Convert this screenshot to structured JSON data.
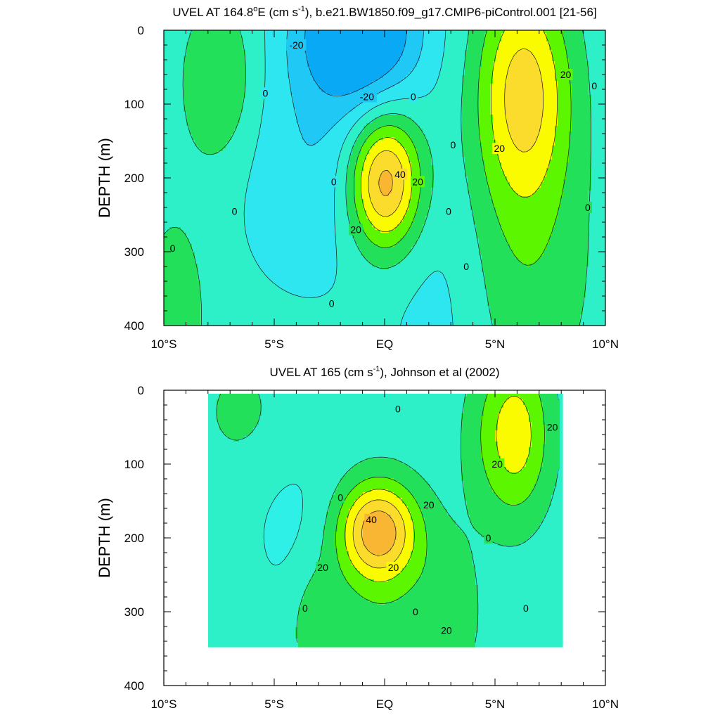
{
  "chart_data": [
    {
      "type": "heatmap",
      "title_parts": [
        "UVEL AT 164.8",
        "o",
        "E (cm s",
        "-1",
        "), b.e21.BW1850.f09_g17.CMIP6-piControl.001 [21-56]"
      ],
      "ylabel": "DEPTH (m)",
      "xlabel": "",
      "x_ticks": [
        "10°S",
        "5°S",
        "EQ",
        "5°N",
        "10°N"
      ],
      "x_tick_values": [
        -10,
        -5,
        0,
        5,
        10
      ],
      "y_ticks": [
        "0",
        "100",
        "200",
        "300",
        "400"
      ],
      "y_tick_values": [
        0,
        100,
        200,
        300,
        400
      ],
      "xlim": [
        -10,
        10
      ],
      "ylim": [
        0,
        400
      ],
      "y_inverted": true,
      "data_extent": {
        "x": [
          -10,
          10
        ],
        "y": [
          0,
          400
        ]
      },
      "color_levels": [
        {
          "min": -40,
          "max": -30,
          "color": "#0aa9f5"
        },
        {
          "min": -30,
          "max": -20,
          "color": "#1fc8f5"
        },
        {
          "min": -20,
          "max": -10,
          "color": "#2ee6f0"
        },
        {
          "min": -10,
          "max": 0,
          "color": "#2ef0c8"
        },
        {
          "min": 0,
          "max": 10,
          "color": "#22e05a"
        },
        {
          "min": 10,
          "max": 20,
          "color": "#5cf700"
        },
        {
          "min": 20,
          "max": 30,
          "color": "#fbfb00"
        },
        {
          "min": 30,
          "max": 40,
          "color": "#fbdc2c"
        },
        {
          "min": 40,
          "max": 50,
          "color": "#f9b632"
        },
        {
          "min": 50,
          "max": 60,
          "color": "#f58c2e"
        }
      ],
      "features": [
        {
          "x": -7.5,
          "y": 70,
          "sx": 1.2,
          "sy": 80,
          "amp": 18
        },
        {
          "x": -1.2,
          "y": 0,
          "sx": 1.9,
          "sy": 70,
          "amp": -44
        },
        {
          "x": -3.2,
          "y": 180,
          "sx": 2.4,
          "sy": 110,
          "amp": -12
        },
        {
          "x": 0,
          "y": 205,
          "sx": 1.15,
          "sy": 65,
          "amp": 55
        },
        {
          "x": 6.3,
          "y": 80,
          "sx": 1.5,
          "sy": 110,
          "amp": 40
        },
        {
          "x": 6.3,
          "y": 330,
          "sx": 2.3,
          "sy": 150,
          "amp": 14
        },
        {
          "x": -9.5,
          "y": 380,
          "sx": 1.2,
          "sy": 110,
          "amp": 12
        },
        {
          "x": 2.8,
          "y": 380,
          "sx": 1.7,
          "sy": 140,
          "amp": -8
        }
      ],
      "baseline": -7,
      "contour_labels": [
        {
          "text": "-20",
          "x": -4.0,
          "y": 20
        },
        {
          "text": "-20",
          "x": -0.8,
          "y": 90
        },
        {
          "text": "0",
          "x": -5.4,
          "y": 85
        },
        {
          "text": "0",
          "x": 1.3,
          "y": 90
        },
        {
          "text": "0",
          "x": 9.5,
          "y": 75
        },
        {
          "text": "0",
          "x": -2.3,
          "y": 205
        },
        {
          "text": "0",
          "x": 3.1,
          "y": 155
        },
        {
          "text": "0",
          "x": -6.8,
          "y": 245
        },
        {
          "text": "0",
          "x": 2.9,
          "y": 245
        },
        {
          "text": "0",
          "x": 9.2,
          "y": 240
        },
        {
          "text": "0",
          "x": -9.6,
          "y": 295
        },
        {
          "text": "0",
          "x": 3.7,
          "y": 320
        },
        {
          "text": "0",
          "x": -2.4,
          "y": 370
        },
        {
          "text": "20",
          "x": 8.2,
          "y": 60
        },
        {
          "text": "20",
          "x": 5.2,
          "y": 160
        },
        {
          "text": "20",
          "x": 1.5,
          "y": 205
        },
        {
          "text": "20",
          "x": -1.3,
          "y": 270
        },
        {
          "text": "40",
          "x": 0.7,
          "y": 195
        }
      ]
    },
    {
      "type": "heatmap",
      "title_parts": [
        "UVEL AT 165 (cm s",
        "-1",
        "), Johnson et al (2002)"
      ],
      "ylabel": "DEPTH (m)",
      "xlabel": "",
      "x_ticks": [
        "10°S",
        "5°S",
        "EQ",
        "5°N",
        "10°N"
      ],
      "x_tick_values": [
        -10,
        -5,
        0,
        5,
        10
      ],
      "y_ticks": [
        "0",
        "100",
        "200",
        "300",
        "400"
      ],
      "y_tick_values": [
        0,
        100,
        200,
        300,
        400
      ],
      "xlim": [
        -10,
        10
      ],
      "ylim": [
        0,
        400
      ],
      "y_inverted": true,
      "data_extent": {
        "x": [
          -8,
          8
        ],
        "y": [
          5,
          345
        ]
      },
      "color_levels": [
        {
          "min": -20,
          "max": -10,
          "color": "#2ef0e6"
        },
        {
          "min": -10,
          "max": 0,
          "color": "#2ef0c8"
        },
        {
          "min": 0,
          "max": 10,
          "color": "#22e05a"
        },
        {
          "min": 10,
          "max": 20,
          "color": "#5cf700"
        },
        {
          "min": 20,
          "max": 30,
          "color": "#fbfb00"
        },
        {
          "min": 30,
          "max": 40,
          "color": "#fbdc2c"
        },
        {
          "min": 40,
          "max": 50,
          "color": "#f9b632"
        }
      ],
      "features": [
        {
          "x": -0.3,
          "y": 190,
          "sx": 1.2,
          "sy": 45,
          "amp": 48
        },
        {
          "x": 0,
          "y": 280,
          "sx": 2.5,
          "sy": 100,
          "amp": 12
        },
        {
          "x": 6.0,
          "y": 60,
          "sx": 1.1,
          "sy": 80,
          "amp": 30
        },
        {
          "x": -6.5,
          "y": 30,
          "sx": 1.5,
          "sy": 60,
          "amp": 8
        },
        {
          "x": 4.5,
          "y": 60,
          "sx": 1.0,
          "sy": 80,
          "amp": 6
        },
        {
          "x": -4.0,
          "y": 200,
          "sx": 1.5,
          "sy": 90,
          "amp": -8
        },
        {
          "x": -3.2,
          "y": 310,
          "sx": 0.8,
          "sy": 60,
          "amp": 10
        },
        {
          "x": 3.0,
          "y": 310,
          "sx": 0.8,
          "sy": 60,
          "amp": 10
        }
      ],
      "baseline": -6,
      "contour_labels": [
        {
          "text": "0",
          "x": 0.6,
          "y": 25
        },
        {
          "text": "0",
          "x": -2.0,
          "y": 145
        },
        {
          "text": "0",
          "x": 4.7,
          "y": 200
        },
        {
          "text": "0",
          "x": -3.6,
          "y": 295
        },
        {
          "text": "0",
          "x": 1.4,
          "y": 300
        },
        {
          "text": "0",
          "x": 6.4,
          "y": 295
        },
        {
          "text": "20",
          "x": 7.6,
          "y": 50
        },
        {
          "text": "20",
          "x": 5.1,
          "y": 100
        },
        {
          "text": "20",
          "x": 2.0,
          "y": 155
        },
        {
          "text": "20",
          "x": 0.4,
          "y": 240
        },
        {
          "text": "20",
          "x": -2.8,
          "y": 240
        },
        {
          "text": "20",
          "x": 2.8,
          "y": 325
        },
        {
          "text": "40",
          "x": -0.6,
          "y": 175
        }
      ]
    }
  ]
}
